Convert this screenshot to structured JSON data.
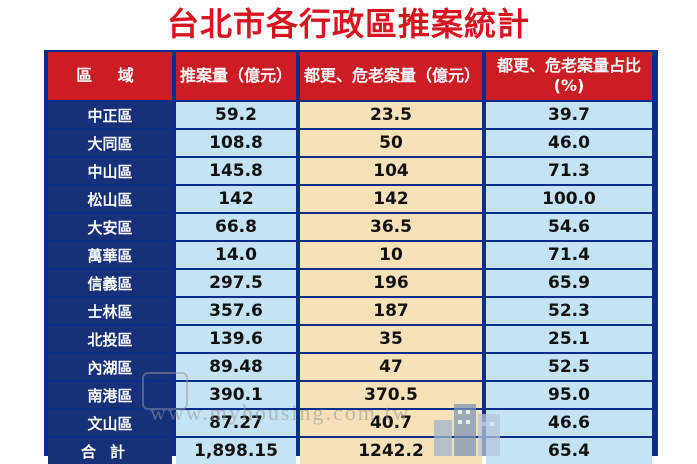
{
  "title": "台北市各行政區推案統計",
  "watermark": "www.myhousing.com.tw",
  "colors": {
    "title": "#d7141f",
    "header_bg": "#cc1d24",
    "frame": "#0b2d8c",
    "name_bg": "#16307a",
    "blue_cell": "#c4e3f4",
    "cream_cell": "#f7e1b8"
  },
  "chart_data": {
    "type": "table",
    "title": "台北市各行政區推案統計",
    "columns": [
      "區 域",
      "推案量（億元）",
      "都更、危老案量（億元）",
      "都更、危老案量占比 (%)"
    ],
    "rows": [
      {
        "district": "中正區",
        "total": "59.2",
        "renewal": "23.5",
        "ratio": "39.7"
      },
      {
        "district": "大同區",
        "total": "108.8",
        "renewal": "50",
        "ratio": "46.0"
      },
      {
        "district": "中山區",
        "total": "145.8",
        "renewal": "104",
        "ratio": "71.3"
      },
      {
        "district": "松山區",
        "total": "142",
        "renewal": "142",
        "ratio": "100.0"
      },
      {
        "district": "大安區",
        "total": "66.8",
        "renewal": "36.5",
        "ratio": "54.6"
      },
      {
        "district": "萬華區",
        "total": "14.0",
        "renewal": "10",
        "ratio": "71.4"
      },
      {
        "district": "信義區",
        "total": "297.5",
        "renewal": "196",
        "ratio": "65.9"
      },
      {
        "district": "士林區",
        "total": "357.6",
        "renewal": "187",
        "ratio": "52.3"
      },
      {
        "district": "北投區",
        "total": "139.6",
        "renewal": "35",
        "ratio": "25.1"
      },
      {
        "district": "內湖區",
        "total": "89.48",
        "renewal": "47",
        "ratio": "52.5"
      },
      {
        "district": "南港區",
        "total": "390.1",
        "renewal": "370.5",
        "ratio": "95.0"
      },
      {
        "district": "文山區",
        "total": "87.27",
        "renewal": "40.7",
        "ratio": "46.6"
      },
      {
        "district": "合計",
        "total": "1,898.15",
        "renewal": "1242.2",
        "ratio": "65.4"
      }
    ]
  }
}
